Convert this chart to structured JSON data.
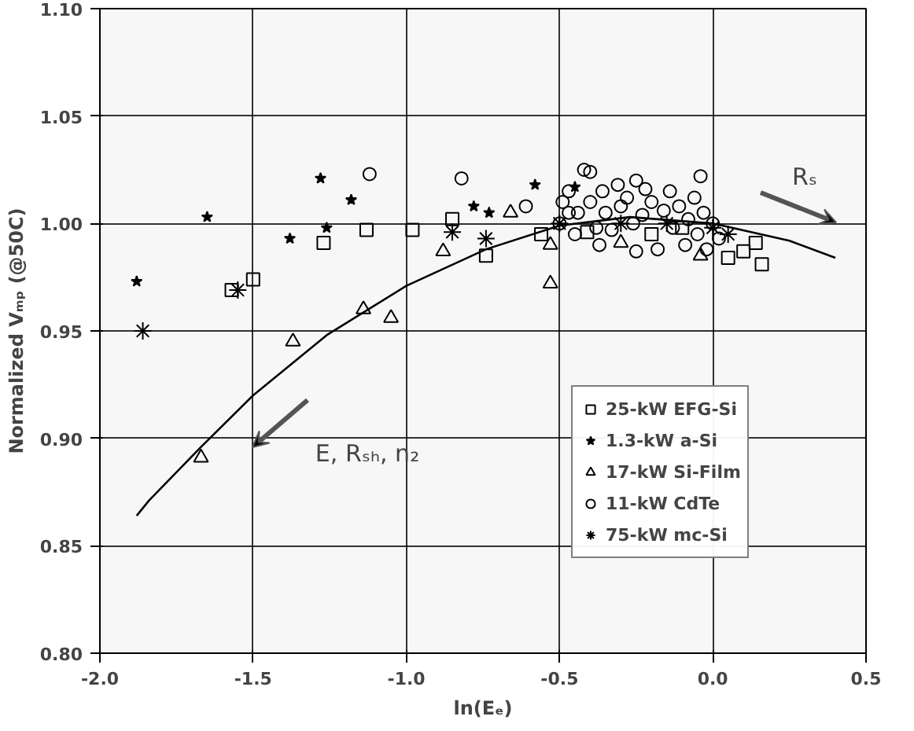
{
  "chart_data": {
    "type": "scatter",
    "xlabel": "ln(Eₑ)",
    "ylabel": "Normalized Vₘₚ (@50C)",
    "xlim": [
      -2.0,
      0.5
    ],
    "xticks": [
      {
        "value": -2,
        "label": "-2.0"
      },
      {
        "value": -1.5,
        "label": "-1.5"
      },
      {
        "value": -1,
        "label": "-1.0"
      },
      {
        "value": -0.5,
        "label": "-0.5"
      },
      {
        "value": 0,
        "label": "0.0"
      },
      {
        "value": 0.5,
        "label": "0.5"
      }
    ],
    "ylim": [
      0.8,
      1.1
    ],
    "yticks": [
      {
        "value": 0.8,
        "label": "0.80"
      },
      {
        "value": 0.85,
        "label": "0.85"
      },
      {
        "value": 0.9,
        "label": "0.90"
      },
      {
        "value": 0.95,
        "label": "0.95"
      },
      {
        "value": 1.0,
        "label": "1.00"
      },
      {
        "value": 1.05,
        "label": "1.05"
      },
      {
        "value": 1.1,
        "label": "1.10"
      }
    ],
    "grid": true,
    "legend": "right",
    "series": [
      {
        "name": "25-kW EFG-Si",
        "color": "#000000",
        "marker": "square",
        "x": [
          -1.57,
          -1.5,
          -1.27,
          -1.13,
          -0.98,
          -0.85,
          -0.74,
          -0.56,
          -0.41,
          -0.2,
          -0.1,
          0.05,
          0.1,
          0.14,
          0.16
        ],
        "values": [
          0.969,
          0.974,
          0.991,
          0.997,
          0.997,
          1.002,
          0.985,
          0.995,
          0.996,
          0.995,
          0.998,
          0.984,
          0.987,
          0.991,
          0.981
        ]
      },
      {
        "name": "1.3-kW a-Si",
        "color": "#000000",
        "marker": "star",
        "x": [
          -1.88,
          -1.65,
          -1.38,
          -1.28,
          -1.26,
          -1.18,
          -0.78,
          -0.73,
          -0.58,
          -0.45
        ],
        "values": [
          0.973,
          1.003,
          0.993,
          1.021,
          0.998,
          1.011,
          1.008,
          1.005,
          1.018,
          1.017
        ]
      },
      {
        "name": "17-kW Si-Film",
        "color": "#000000",
        "marker": "triangle",
        "x": [
          -1.67,
          -1.37,
          -1.14,
          -1.05,
          -0.88,
          -0.66,
          -0.53,
          -0.53,
          -0.3,
          -0.04
        ],
        "values": [
          0.891,
          0.945,
          0.96,
          0.956,
          0.987,
          1.005,
          0.99,
          0.972,
          0.991,
          0.985
        ]
      },
      {
        "name": "11-kW CdTe",
        "color": "#000000",
        "marker": "circle",
        "x": [
          -1.12,
          -0.82,
          -0.61,
          -0.5,
          -0.49,
          -0.47,
          -0.47,
          -0.45,
          -0.44,
          -0.42,
          -0.4,
          -0.4,
          -0.38,
          -0.37,
          -0.36,
          -0.35,
          -0.33,
          -0.31,
          -0.3,
          -0.28,
          -0.26,
          -0.25,
          -0.23,
          -0.22,
          -0.25,
          -0.2,
          -0.18,
          -0.16,
          -0.14,
          -0.13,
          -0.11,
          -0.09,
          -0.08,
          -0.06,
          -0.05,
          -0.04,
          -0.03,
          -0.02,
          0.0,
          0.02
        ],
        "values": [
          1.023,
          1.021,
          1.008,
          1.0,
          1.01,
          1.015,
          1.005,
          0.995,
          1.005,
          1.025,
          1.024,
          1.01,
          0.998,
          0.99,
          1.015,
          1.005,
          0.997,
          1.018,
          1.008,
          1.012,
          1.0,
          1.02,
          1.004,
          1.016,
          0.987,
          1.01,
          0.988,
          1.006,
          1.015,
          0.998,
          1.008,
          0.99,
          1.002,
          1.012,
          0.995,
          1.022,
          1.005,
          0.988,
          1.0,
          0.993
        ]
      },
      {
        "name": "75-kW mc-Si",
        "color": "#000000",
        "marker": "cross",
        "x": [
          -1.86,
          -1.55,
          -0.85,
          -0.74,
          -0.5,
          -0.3,
          -0.15,
          0.0,
          0.05
        ],
        "values": [
          0.95,
          0.969,
          0.996,
          0.993,
          1.0,
          1.0,
          1.0,
          0.998,
          0.995
        ]
      },
      {
        "type": "line",
        "color": "#000000",
        "x": [
          -1.88,
          -1.84,
          -1.67,
          -1.5,
          -1.26,
          -1.0,
          -0.74,
          -0.5,
          -0.27,
          0.0,
          0.25,
          0.4
        ],
        "values": [
          0.864,
          0.871,
          0.896,
          0.92,
          0.948,
          0.971,
          0.988,
          0.999,
          1.003,
          1.0,
          0.992,
          0.984
        ]
      }
    ],
    "annotations": [
      "E, Rₛₕ, n₂",
      "Rₛ"
    ]
  }
}
